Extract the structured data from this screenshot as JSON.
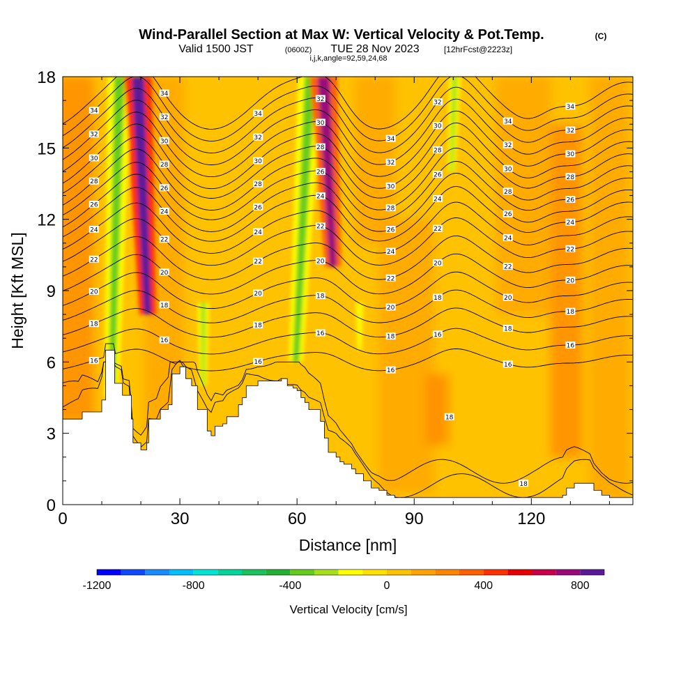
{
  "titles": {
    "main": "Wind-Parallel Section at Max W: Vertical Velocity & Pot.Temp.",
    "copyright": "(C)",
    "valid_prefix": "Valid 1500 JST",
    "valid_zulu": "(0600Z)",
    "valid_date": "TUE 28 Nov 2023",
    "forecast": "[12hrFcst@2223z]",
    "indices": "i,j,k,angle=92,59,24,68"
  },
  "chart_data": {
    "type": "heatmap",
    "xlabel": "Distance [nm]",
    "ylabel": "Height [Kft MSL]",
    "xlim": [
      0,
      146
    ],
    "ylim": [
      0,
      18
    ],
    "xticks": [
      0,
      30,
      60,
      90,
      120
    ],
    "xtick_labels": [
      "0",
      "30",
      "60",
      "90",
      "120"
    ],
    "yticks": [
      0,
      3,
      6,
      9,
      12,
      15,
      18
    ],
    "ytick_labels": [
      "0",
      "3",
      "6",
      "9",
      "12",
      "15",
      "18"
    ],
    "colorbar": {
      "label": "Vertical Velocity [cm/s]",
      "min": -1200,
      "max": 900,
      "step": 100,
      "tick_values": [
        -1200,
        -800,
        -400,
        0,
        400,
        800
      ],
      "tick_labels": [
        "-1200",
        "-800",
        "-400",
        "0",
        "400",
        "800"
      ],
      "colors": [
        "#0000ff",
        "#0d49ff",
        "#168cff",
        "#00bfff",
        "#00e5d4",
        "#00d69a",
        "#19c25a",
        "#24b033",
        "#66cc1a",
        "#a6e01a",
        "#ffff00",
        "#ffe100",
        "#ffc200",
        "#ffa300",
        "#ff8500",
        "#ff5f00",
        "#ff2f00",
        "#e80000",
        "#c8004a",
        "#9a0a7a",
        "#5b1a9a"
      ]
    },
    "terrain_kft": [
      [
        0,
        3.6
      ],
      [
        4,
        3.6
      ],
      [
        5,
        3.9
      ],
      [
        9,
        3.9
      ],
      [
        10,
        4.4
      ],
      [
        11,
        6.5
      ],
      [
        13,
        6.5
      ],
      [
        13.3,
        5.1
      ],
      [
        15,
        5.1
      ],
      [
        15.3,
        4.6
      ],
      [
        17,
        4.6
      ],
      [
        17.6,
        3.6
      ],
      [
        18,
        2.6
      ],
      [
        20,
        2.3
      ],
      [
        21.5,
        2.6
      ],
      [
        22,
        3.6
      ],
      [
        24,
        3.6
      ],
      [
        25,
        4.0
      ],
      [
        27,
        4.2
      ],
      [
        28,
        5.5
      ],
      [
        30,
        5.8
      ],
      [
        31.5,
        5.3
      ],
      [
        33,
        5.0
      ],
      [
        34.5,
        4.0
      ],
      [
        37,
        3.1
      ],
      [
        38,
        2.9
      ],
      [
        39,
        3.3
      ],
      [
        41,
        3.4
      ],
      [
        42,
        3.7
      ],
      [
        45,
        4.2
      ],
      [
        46,
        4.5
      ],
      [
        47,
        5.0
      ],
      [
        50,
        5.2
      ],
      [
        55,
        5.2
      ],
      [
        56,
        5.3
      ],
      [
        57.5,
        5.0
      ],
      [
        59,
        4.9
      ],
      [
        60,
        4.8
      ],
      [
        61,
        4.5
      ],
      [
        62,
        4.3
      ],
      [
        63,
        4.0
      ],
      [
        66,
        3.5
      ],
      [
        67,
        2.8
      ],
      [
        68,
        2.2
      ],
      [
        70,
        2.0
      ],
      [
        71,
        1.8
      ],
      [
        72,
        1.7
      ],
      [
        74,
        1.5
      ],
      [
        75,
        1.3
      ],
      [
        77,
        1.0
      ],
      [
        79,
        0.7
      ],
      [
        81,
        0.6
      ],
      [
        83,
        0.4
      ],
      [
        85,
        0.3
      ],
      [
        87,
        0.3
      ],
      [
        90,
        0.3
      ],
      [
        92,
        0.3
      ],
      [
        100,
        0.3
      ],
      [
        111,
        0.3
      ],
      [
        112,
        0.3
      ],
      [
        118,
        0.3
      ],
      [
        122,
        0.3
      ],
      [
        128,
        0.4
      ],
      [
        129,
        0.7
      ],
      [
        131,
        0.9
      ],
      [
        133,
        0.9
      ],
      [
        135,
        0.9
      ],
      [
        136,
        0.6
      ],
      [
        138,
        0.4
      ],
      [
        140,
        0.3
      ],
      [
        146,
        0.3
      ]
    ],
    "theta_lines_kft": [
      {
        "label": "16",
        "base": 6.2,
        "a": 0.6
      },
      {
        "label": "16",
        "base": 7.0,
        "a": 0.7
      },
      {
        "label": "18",
        "base": 7.8,
        "a": 0.8
      },
      {
        "label": "18",
        "base": 8.5,
        "a": 0.9
      },
      {
        "label": "20",
        "base": 9.2,
        "a": 1.0
      },
      {
        "label": "20",
        "base": 9.9,
        "a": 1.1
      },
      {
        "label": "22",
        "base": 10.6,
        "a": 1.2
      },
      {
        "label": "22",
        "base": 11.3,
        "a": 1.3
      },
      {
        "label": "24",
        "base": 11.9,
        "a": 1.4
      },
      {
        "label": "24",
        "base": 12.5,
        "a": 1.5
      },
      {
        "label": "26",
        "base": 13.0,
        "a": 1.6
      },
      {
        "label": "26",
        "base": 13.5,
        "a": 1.6
      },
      {
        "label": "28",
        "base": 14.0,
        "a": 1.7
      },
      {
        "label": "28",
        "base": 14.5,
        "a": 1.7
      },
      {
        "label": "30",
        "base": 15.0,
        "a": 1.8
      },
      {
        "label": "30",
        "base": 15.5,
        "a": 1.8
      },
      {
        "label": "32",
        "base": 16.0,
        "a": 1.8
      },
      {
        "label": "32",
        "base": 16.5,
        "a": 1.8
      },
      {
        "label": "34",
        "base": 17.0,
        "a": 1.8
      },
      {
        "label": "34",
        "base": 17.5,
        "a": 1.8
      }
    ],
    "near_surface_theta_label": "18",
    "velocity_features": [
      {
        "x": 13.5,
        "ymin": 4.5,
        "ymax": 18,
        "value": -400,
        "width_nm": 3.0,
        "tilt": 0.15
      },
      {
        "x": 20.5,
        "ymin": 8.0,
        "ymax": 18,
        "value": 800,
        "width_nm": 3.5,
        "tilt": -0.25
      },
      {
        "x": 36,
        "ymin": 5.0,
        "ymax": 8.5,
        "value": -250,
        "width_nm": 1.5,
        "tilt": 0
      },
      {
        "x": 61.5,
        "ymin": 6.0,
        "ymax": 18,
        "value": -400,
        "width_nm": 3.0,
        "tilt": 0.3
      },
      {
        "x": 68,
        "ymin": 10.0,
        "ymax": 18,
        "value": 700,
        "width_nm": 3.5,
        "tilt": -0.3
      },
      {
        "x": 76,
        "ymin": 6.5,
        "ymax": 8.5,
        "value": -200,
        "width_nm": 1.2,
        "tilt": 0
      },
      {
        "x": 100,
        "ymin": 14.0,
        "ymax": 18,
        "value": -250,
        "width_nm": 1.5,
        "tilt": 0.2
      }
    ]
  }
}
